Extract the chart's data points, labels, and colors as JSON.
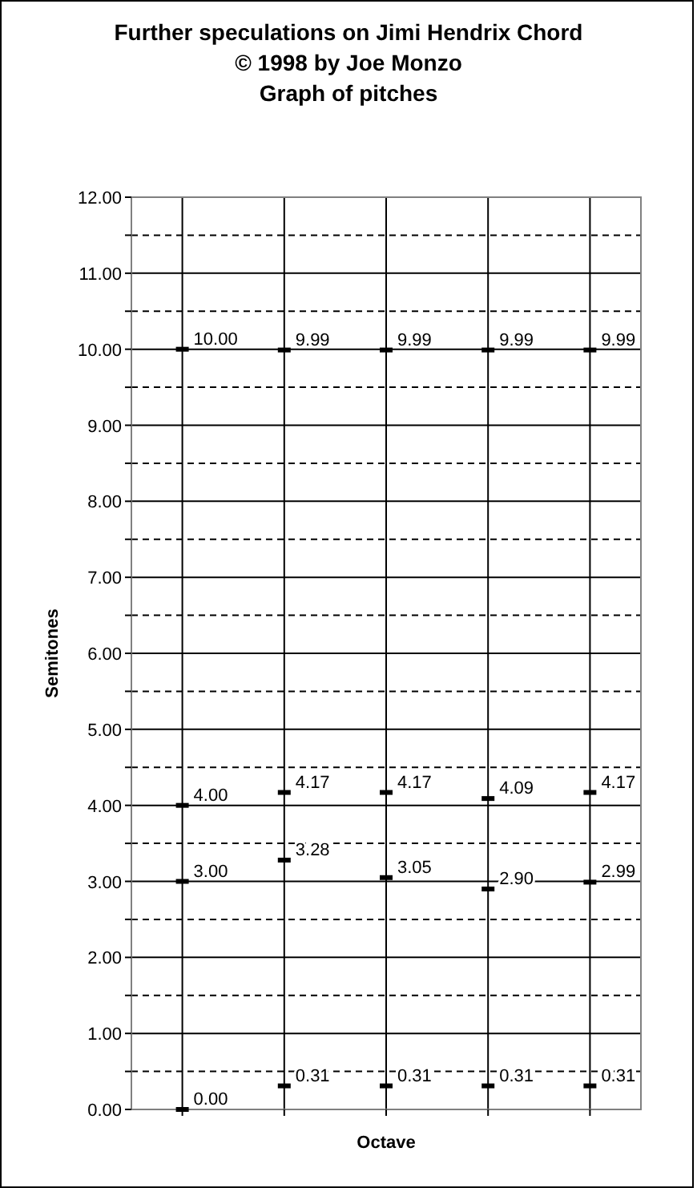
{
  "chart_data": {
    "type": "scatter",
    "title": "Further speculations on Jimi Hendrix Chord\n© 1998 by Joe Monzo\nGraph of pitches",
    "xlabel": "Octave",
    "ylabel": "Semitones",
    "categories": [
      null,
      null,
      null,
      null,
      null
    ],
    "ylim": [
      0,
      12
    ],
    "yticks": [
      {
        "value": 0,
        "label": "0.00"
      },
      {
        "value": 0.5,
        "label": null
      },
      {
        "value": 1,
        "label": "1.00"
      },
      {
        "value": 1.5,
        "label": null
      },
      {
        "value": 2,
        "label": "2.00"
      },
      {
        "value": 2.5,
        "label": null
      },
      {
        "value": 3,
        "label": "3.00"
      },
      {
        "value": 3.5,
        "label": null
      },
      {
        "value": 4,
        "label": "4.00"
      },
      {
        "value": 4.5,
        "label": null
      },
      {
        "value": 5,
        "label": "5.00"
      },
      {
        "value": 5.5,
        "label": null
      },
      {
        "value": 6,
        "label": "6.00"
      },
      {
        "value": 6.5,
        "label": null
      },
      {
        "value": 7,
        "label": "7.00"
      },
      {
        "value": 7.5,
        "label": null
      },
      {
        "value": 8,
        "label": "8.00"
      },
      {
        "value": 8.5,
        "label": null
      },
      {
        "value": 9,
        "label": "9.00"
      },
      {
        "value": 9.5,
        "label": null
      },
      {
        "value": 10,
        "label": "10.00"
      },
      {
        "value": 10.5,
        "label": null
      },
      {
        "value": 11,
        "label": "11.00"
      },
      {
        "value": 11.5,
        "label": null
      },
      {
        "value": 12,
        "label": "12.00"
      }
    ],
    "grid": true,
    "series": [
      {
        "color": "#000000",
        "values": [
          0,
          0.31,
          0.31,
          0.31,
          0.31
        ],
        "value_labels": [
          "0.00",
          "0.31",
          "0.31",
          "0.31",
          "0.31"
        ]
      },
      {
        "color": "#000000",
        "values": [
          3,
          3.28,
          3.05,
          2.9,
          2.99
        ],
        "value_labels": [
          "3.00",
          "3.28",
          "3.05",
          "2.90",
          "2.99"
        ]
      },
      {
        "color": "#000000",
        "values": [
          4,
          4.17,
          4.17,
          4.09,
          4.17
        ],
        "value_labels": [
          "4.00",
          "4.17",
          "4.17",
          "4.09",
          "4.17"
        ]
      },
      {
        "color": "#000000",
        "values": [
          10,
          9.99,
          9.99,
          9.99,
          9.99
        ],
        "value_labels": [
          "10.00",
          "9.99",
          "9.99",
          "9.99",
          "9.99"
        ]
      }
    ]
  }
}
